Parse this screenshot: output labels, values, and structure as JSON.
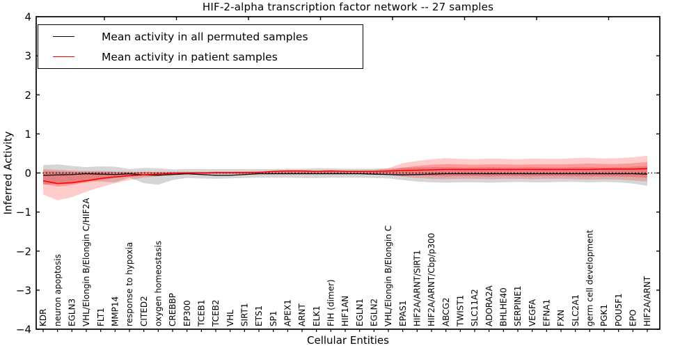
{
  "figure": {
    "title": "HIF-2-alpha transcription factor network -- 27 samples",
    "xlabel": "Cellular Entities",
    "ylabel": "Inferred Activity"
  },
  "legend": {
    "position": "upper left",
    "entries": [
      {
        "label": "Mean activity in all permuted samples",
        "color": "#000000"
      },
      {
        "label": "Mean activity in patient samples",
        "color": "#ff0000"
      }
    ]
  },
  "chart_data": {
    "type": "line",
    "title": "HIF-2-alpha transcription factor network -- 27 samples",
    "xlabel": "Cellular Entities",
    "ylabel": "Inferred Activity",
    "ylim": [
      -4,
      4
    ],
    "ytick_values": [
      4,
      3,
      2,
      1,
      0,
      -1,
      -2,
      -3,
      -4
    ],
    "ytick_labels": [
      "4",
      "3",
      "2",
      "1",
      "0",
      "−1",
      "−2",
      "−3",
      "−4"
    ],
    "grid": false,
    "legend_position": "upper left",
    "zero_line": {
      "y": 0,
      "color": "#000000",
      "style": "dotted"
    },
    "categories": [
      "KDR",
      "neuron apoptosis",
      "EGLN3",
      "VHL/Elongin B/Elongin C/HIF2A",
      "FLT1",
      "MMP14",
      "response to hypoxia",
      "CITED2",
      "oxygen homeostasis",
      "CREBBP",
      "EP300",
      "TCEB1",
      "TCEB2",
      "VHL",
      "SIRT1",
      "ETS1",
      "SP1",
      "APEX1",
      "ARNT",
      "ELK1",
      "FIH (dimer)",
      "HIF1AN",
      "EGLN1",
      "EGLN2",
      "VHL/Elongin B/Elongin C",
      "EPAS1",
      "HIF2A/ARNT/SIRT1",
      "HIF2A/ARNT/Cbp/p300",
      "ABCG2",
      "TWIST1",
      "SLC11A2",
      "ADORA2A",
      "BHLHE40",
      "SERPINE1",
      "VEGFA",
      "EFNA1",
      "FXN",
      "SLC2A1",
      "germ cell development",
      "PGK1",
      "POU5F1",
      "EPO",
      "HIF2A/ARNT"
    ],
    "series": [
      {
        "name": "Mean activity in all permuted samples",
        "color": "#000000",
        "style": "solid",
        "width": 1.3,
        "values": [
          -0.06,
          -0.05,
          -0.04,
          -0.02,
          -0.03,
          -0.04,
          -0.02,
          -0.05,
          -0.06,
          -0.04,
          -0.02,
          -0.04,
          -0.06,
          -0.06,
          -0.04,
          -0.02,
          -0.02,
          -0.02,
          -0.02,
          -0.02,
          -0.02,
          -0.02,
          -0.02,
          -0.03,
          -0.04,
          -0.05,
          -0.04,
          -0.03,
          -0.02,
          -0.02,
          -0.02,
          -0.02,
          -0.02,
          -0.02,
          -0.02,
          -0.02,
          -0.02,
          -0.02,
          -0.02,
          -0.02,
          -0.02,
          -0.02,
          -0.03
        ]
      },
      {
        "name": "Mean activity in patient samples",
        "color": "#ff0000",
        "style": "solid",
        "width": 1.6,
        "values": [
          -0.2,
          -0.27,
          -0.25,
          -0.2,
          -0.14,
          -0.1,
          -0.07,
          -0.05,
          -0.03,
          -0.01,
          0.0,
          0.0,
          0.01,
          0.01,
          0.01,
          0.01,
          0.04,
          0.05,
          0.05,
          0.04,
          0.05,
          0.04,
          0.04,
          0.04,
          0.05,
          0.06,
          0.07,
          0.08,
          0.09,
          0.09,
          0.09,
          0.09,
          0.09,
          0.09,
          0.09,
          0.09,
          0.09,
          0.09,
          0.09,
          0.1,
          0.1,
          0.1,
          0.11
        ]
      }
    ],
    "bands": [
      {
        "name": "permuted-spread",
        "color": "#999999",
        "opacity": 0.4,
        "upper": [
          0.2,
          0.22,
          0.18,
          0.15,
          0.17,
          0.16,
          0.1,
          0.13,
          0.12,
          0.09,
          0.1,
          0.1,
          0.1,
          0.1,
          0.1,
          0.1,
          0.1,
          0.11,
          0.11,
          0.12,
          0.12,
          0.11,
          0.11,
          0.11,
          0.12,
          0.13,
          0.14,
          0.15,
          0.15,
          0.14,
          0.14,
          0.15,
          0.14,
          0.14,
          0.15,
          0.14,
          0.14,
          0.15,
          0.15,
          0.14,
          0.15,
          0.16,
          0.18
        ],
        "lower": [
          -0.3,
          -0.28,
          -0.24,
          -0.2,
          -0.22,
          -0.24,
          -0.12,
          -0.26,
          -0.3,
          -0.18,
          -0.13,
          -0.14,
          -0.15,
          -0.14,
          -0.13,
          -0.12,
          -0.12,
          -0.12,
          -0.13,
          -0.13,
          -0.12,
          -0.12,
          -0.12,
          -0.13,
          -0.14,
          -0.18,
          -0.22,
          -0.24,
          -0.25,
          -0.24,
          -0.24,
          -0.25,
          -0.24,
          -0.23,
          -0.24,
          -0.24,
          -0.23,
          -0.23,
          -0.24,
          -0.23,
          -0.24,
          -0.27,
          -0.33
        ]
      },
      {
        "name": "patient-spread-outer",
        "color": "#ff0000",
        "opacity": 0.2,
        "upper": [
          0.1,
          0.08,
          0.06,
          0.05,
          0.05,
          0.04,
          0.03,
          0.03,
          0.03,
          0.03,
          0.03,
          0.03,
          0.03,
          0.03,
          0.04,
          0.05,
          0.06,
          0.07,
          0.07,
          0.06,
          0.07,
          0.07,
          0.07,
          0.08,
          0.12,
          0.25,
          0.31,
          0.35,
          0.38,
          0.36,
          0.35,
          0.37,
          0.36,
          0.35,
          0.37,
          0.36,
          0.36,
          0.38,
          0.39,
          0.37,
          0.38,
          0.4,
          0.44
        ],
        "lower": [
          -0.55,
          -0.7,
          -0.62,
          -0.48,
          -0.36,
          -0.26,
          -0.18,
          -0.12,
          -0.08,
          -0.05,
          -0.04,
          -0.03,
          -0.03,
          -0.03,
          -0.03,
          -0.02,
          -0.02,
          -0.02,
          -0.02,
          -0.02,
          -0.02,
          -0.02,
          -0.02,
          -0.03,
          -0.05,
          -0.1,
          -0.13,
          -0.15,
          -0.16,
          -0.15,
          -0.15,
          -0.16,
          -0.15,
          -0.15,
          -0.16,
          -0.15,
          -0.15,
          -0.16,
          -0.17,
          -0.16,
          -0.17,
          -0.19,
          -0.22
        ]
      },
      {
        "name": "patient-spread-inner",
        "color": "#ff0000",
        "opacity": 0.25,
        "upper": [
          0.05,
          0.04,
          0.03,
          0.03,
          0.03,
          0.02,
          0.02,
          0.02,
          0.02,
          0.02,
          0.02,
          0.02,
          0.02,
          0.02,
          0.02,
          0.03,
          0.03,
          0.04,
          0.04,
          0.04,
          0.04,
          0.04,
          0.04,
          0.05,
          0.07,
          0.14,
          0.18,
          0.21,
          0.23,
          0.22,
          0.21,
          0.22,
          0.22,
          0.21,
          0.22,
          0.22,
          0.22,
          0.23,
          0.24,
          0.23,
          0.23,
          0.25,
          0.28
        ],
        "lower": [
          -0.28,
          -0.35,
          -0.31,
          -0.24,
          -0.18,
          -0.13,
          -0.09,
          -0.06,
          -0.04,
          -0.03,
          -0.02,
          -0.02,
          -0.02,
          -0.02,
          -0.02,
          -0.01,
          -0.01,
          -0.01,
          -0.01,
          -0.01,
          -0.01,
          -0.01,
          -0.01,
          -0.02,
          -0.03,
          -0.05,
          -0.07,
          -0.08,
          -0.09,
          -0.08,
          -0.08,
          -0.09,
          -0.08,
          -0.08,
          -0.09,
          -0.08,
          -0.08,
          -0.09,
          -0.09,
          -0.09,
          -0.09,
          -0.1,
          -0.12
        ]
      }
    ]
  }
}
